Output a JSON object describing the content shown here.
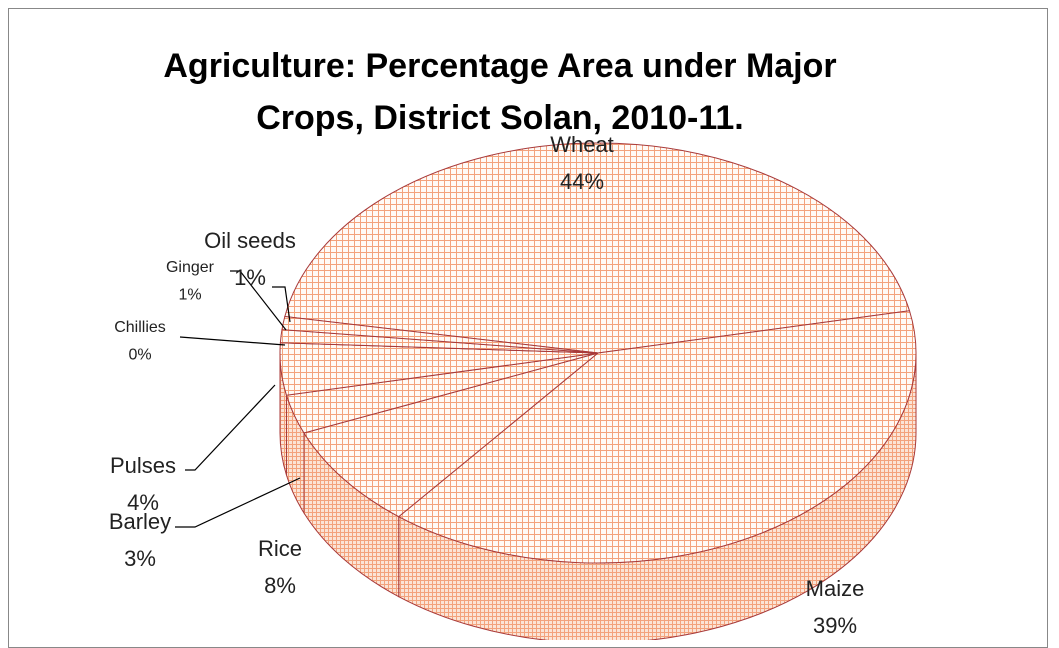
{
  "chart_data": {
    "type": "pie",
    "title": "Agriculture: Percentage Area under Major Crops, District Solan, 2010-11.",
    "categories": [
      "Wheat",
      "Maize",
      "Rice",
      "Barley",
      "Pulses",
      "Chillies",
      "Ginger",
      "Oil seeds"
    ],
    "values": [
      44,
      39,
      8,
      3,
      4,
      0,
      1,
      1
    ],
    "value_labels": [
      "44%",
      "39%",
      "8%",
      "3%",
      "4%",
      "0%",
      "1%",
      "1%"
    ],
    "color": "#f3a27c",
    "edge_color": "#a83a3a"
  }
}
